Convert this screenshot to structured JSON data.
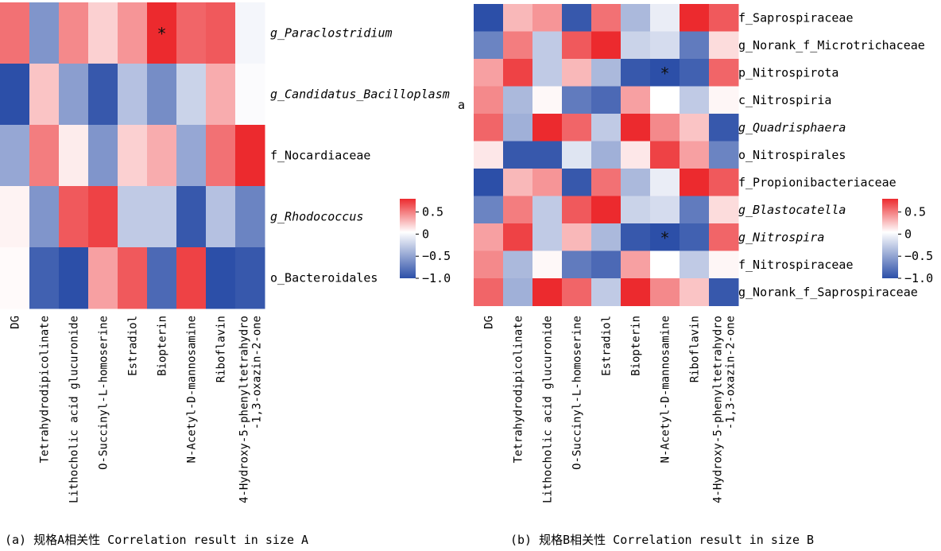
{
  "captions": {
    "a": "(a) 规格A相关性 Correlation result in size A",
    "b": "(b) 规格B相关性 Correlation result in size B"
  },
  "stray_label": "a",
  "colors": {
    "neg": "#2c4fa8",
    "mid": "#ffffff",
    "pos": "#ec2a2e"
  },
  "chart_data": [
    {
      "type": "heatmap",
      "title": "",
      "x_labels": [
        "DG",
        "Tetrahydrodipicolinate",
        "Lithocholic acid glucuronide",
        "O-Succinyl-L-homoserine",
        "Estradiol",
        "Biopterin",
        "N-Acetyl-D-mannosamine",
        "Riboflavin",
        "4-Hydroxy-5-phenyltetrahydro\n-1,3-oxazin-2-one"
      ],
      "y_labels": [
        "g_Paraclostridium",
        "g_Candidatus_Bacilloplasm",
        "f_Nocardiaceae",
        "g_Rhodococcus",
        "o_Bacteroidales"
      ],
      "italic_rows": [
        0,
        1,
        3
      ],
      "values": [
        [
          0.6,
          -0.6,
          0.5,
          0.2,
          0.45,
          0.95,
          0.65,
          0.7,
          -0.05
        ],
        [
          -1.0,
          0.25,
          -0.55,
          -0.95,
          -0.35,
          -0.65,
          -0.25,
          0.35,
          -0.02
        ],
        [
          -0.5,
          0.55,
          0.08,
          -0.6,
          0.2,
          0.35,
          -0.5,
          0.6,
          0.9
        ],
        [
          0.05,
          -0.6,
          0.7,
          0.8,
          -0.3,
          -0.3,
          -0.95,
          -0.35,
          -0.7
        ],
        [
          0.02,
          -0.9,
          -1.0,
          0.4,
          0.7,
          -0.85,
          0.8,
          -1.0,
          -0.95
        ]
      ],
      "significant": [
        [
          0,
          5
        ]
      ],
      "significance_marker": "*",
      "colorbar": {
        "ticks": [
          0.5,
          0,
          -0.5,
          -1.0
        ],
        "tick_labels": [
          "0.5",
          "0",
          "−0.5",
          "−1.0"
        ],
        "range": [
          -1.0,
          0.8
        ]
      }
    },
    {
      "type": "heatmap",
      "title": "",
      "x_labels": [
        "DG",
        "Tetrahydrodipicolinate",
        "Lithocholic acid glucuronide",
        "O-Succinyl-L-homoserine",
        "Estradiol",
        "Biopterin",
        "N-Acetyl-D-mannosamine",
        "Riboflavin",
        "4-Hydroxy-5-phenyltetrahydro\n-1,3-oxazin-2-one"
      ],
      "y_labels": [
        "f_Saprospiraceae",
        "g_Norank_f_Microtrichaceae",
        "p_Nitrospirota",
        "c_Nitrospiria",
        "g_Quadrisphaera",
        "o_Nitrospirales",
        "f_Propionibacteriaceae",
        "g_Blastocatella",
        "g_Nitrospira",
        "f_Nitrospiraceae",
        "g_Norank_f_Saprospiraceae"
      ],
      "italic_rows": [
        4,
        7,
        8
      ],
      "values": [
        [
          -1.0,
          0.3,
          0.45,
          -0.95,
          0.6,
          -0.4,
          -0.1,
          0.9,
          0.7
        ],
        [
          -0.7,
          0.55,
          -0.3,
          0.7,
          0.95,
          -0.25,
          -0.2,
          -0.75,
          0.15
        ],
        [
          0.4,
          0.8,
          -0.3,
          0.3,
          -0.4,
          -0.95,
          -1.0,
          -0.9,
          0.65
        ],
        [
          0.5,
          -0.4,
          0.03,
          -0.75,
          -0.85,
          0.4,
          0.0,
          -0.3,
          0.04
        ],
        [
          0.65,
          -0.45,
          0.95,
          0.65,
          -0.3,
          0.9,
          0.5,
          0.25,
          -0.95
        ],
        [
          0.1,
          -0.95,
          -0.95,
          -0.15,
          -0.45,
          0.1,
          0.8,
          0.4,
          -0.7
        ],
        [
          -1.0,
          0.3,
          0.45,
          -0.95,
          0.6,
          -0.4,
          -0.1,
          0.9,
          0.7
        ],
        [
          -0.7,
          0.55,
          -0.3,
          0.7,
          0.95,
          -0.25,
          -0.2,
          -0.75,
          0.15
        ],
        [
          0.4,
          0.8,
          -0.3,
          0.3,
          -0.4,
          -0.95,
          -1.0,
          -0.9,
          0.65
        ],
        [
          0.5,
          -0.4,
          0.03,
          -0.75,
          -0.85,
          0.4,
          0.0,
          -0.3,
          0.04
        ],
        [
          0.65,
          -0.45,
          0.95,
          0.65,
          -0.3,
          0.9,
          0.5,
          0.25,
          -0.95
        ]
      ],
      "significant": [
        [
          2,
          6
        ],
        [
          8,
          6
        ]
      ],
      "significance_marker": "*",
      "colorbar": {
        "ticks": [
          0.5,
          0,
          -0.5,
          -1.0
        ],
        "tick_labels": [
          "0.5",
          "0",
          "−0.5",
          "−1.0"
        ],
        "range": [
          -1.0,
          0.8
        ]
      }
    }
  ]
}
